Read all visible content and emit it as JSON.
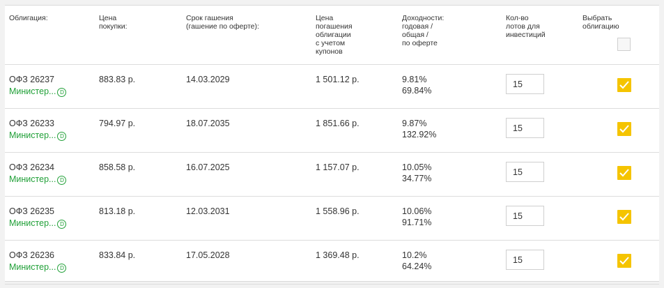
{
  "header": {
    "bond": "Облигация:",
    "price": "Цена\nпокупки:",
    "maturity": "Срок гашения\n(гашение по оферте):",
    "redemption": "Цена\nпогашения\nоблигации\nс учетом\nкупонов",
    "yield": "Доходности:\nгодовая /\nобщая /\nпо оферте",
    "lots": "Кол-во\nлотов для\nинвестиций",
    "select": "Выбрать\nоблигацию"
  },
  "badge_letter": "D",
  "accent_color": "#21a038",
  "checkbox_color": "#f5c400",
  "rows": [
    {
      "name": "ОФЗ 26237",
      "issuer": "Министер...",
      "price": "883.83 р.",
      "maturity": "14.03.2029",
      "redemption": "1 501.12 р.",
      "yield_annual": "9.81%",
      "yield_total": "69.84%",
      "lots": "15",
      "selected": true
    },
    {
      "name": "ОФЗ 26233",
      "issuer": "Министер...",
      "price": "794.97 р.",
      "maturity": "18.07.2035",
      "redemption": "1 851.66 р.",
      "yield_annual": "9.87%",
      "yield_total": "132.92%",
      "lots": "15",
      "selected": true
    },
    {
      "name": "ОФЗ 26234",
      "issuer": "Министер...",
      "price": "858.58 р.",
      "maturity": "16.07.2025",
      "redemption": "1 157.07 р.",
      "yield_annual": "10.05%",
      "yield_total": "34.77%",
      "lots": "15",
      "selected": true
    },
    {
      "name": "ОФЗ 26235",
      "issuer": "Министер...",
      "price": "813.18 р.",
      "maturity": "12.03.2031",
      "redemption": "1 558.96 р.",
      "yield_annual": "10.06%",
      "yield_total": "91.71%",
      "lots": "15",
      "selected": true
    },
    {
      "name": "ОФЗ 26236",
      "issuer": "Министер...",
      "price": "833.84 р.",
      "maturity": "17.05.2028",
      "redemption": "1 369.48 р.",
      "yield_annual": "10.2%",
      "yield_total": "64.24%",
      "lots": "15",
      "selected": true
    }
  ]
}
